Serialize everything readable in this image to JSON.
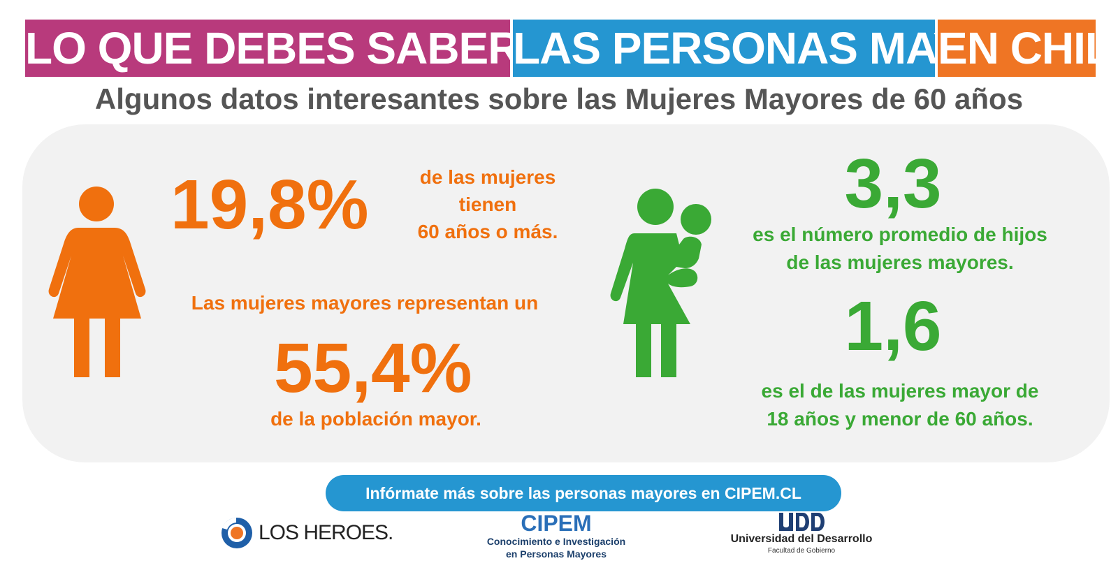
{
  "header": {
    "part1": "LO QUE DEBES SABER SOBRE",
    "part2": "LAS PERSONAS MAYORES",
    "part3": "EN CHILE",
    "colors": [
      "#b83a7c",
      "#2596d1",
      "#ef7524"
    ]
  },
  "subtitle": "Algunos datos interesantes sobre las Mujeres Mayores de 60 años",
  "left": {
    "stat1_value": "19,8%",
    "stat1_text": [
      "de las mujeres",
      "tienen",
      "60 años o más."
    ],
    "stat2_intro": "Las mujeres mayores representan un",
    "stat2_value": "55,4%",
    "stat2_text": "de la población mayor.",
    "icon": "woman-icon",
    "color": "#f0700e"
  },
  "right": {
    "stat1_value": "3,3",
    "stat1_text": [
      "es el número promedio de hijos",
      "de las mujeres mayores."
    ],
    "stat2_value": "1,6",
    "stat2_text": [
      "es el de las mujeres mayor de",
      "18 años y menor de 60 años."
    ],
    "icon": "woman-with-child-icon",
    "color": "#3aa935"
  },
  "cta": "Infórmate más sobre las personas mayores en CIPEM.CL",
  "logos": {
    "los_heroes": "LOS HEROES.",
    "cipem_title": "CIPEM",
    "cipem_line1": "Conocimiento e Investigación",
    "cipem_line2": "en Personas Mayores",
    "udd_name": "Universidad del Desarrollo",
    "udd_sub": "Facultad de Gobierno"
  }
}
